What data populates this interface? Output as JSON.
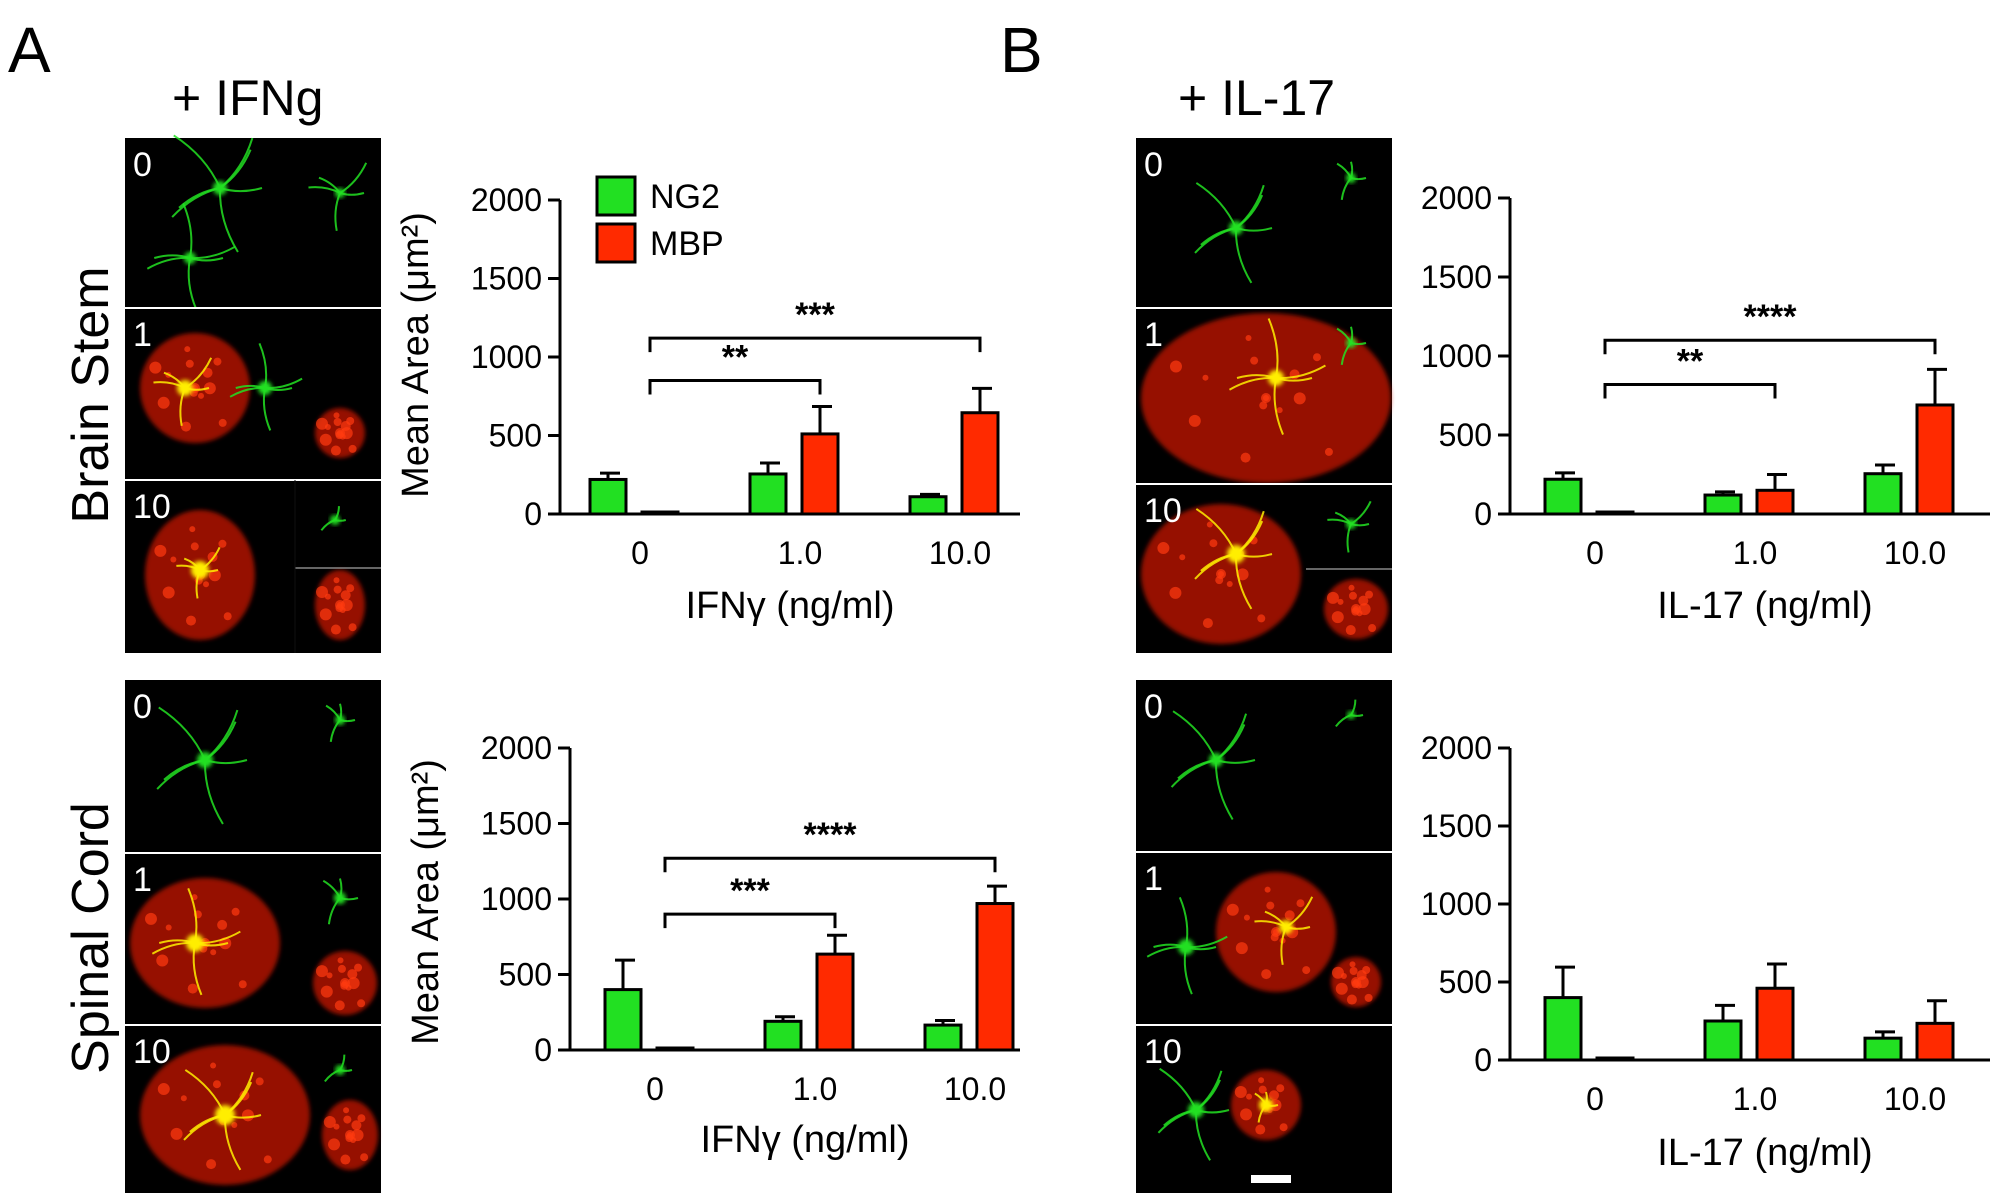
{
  "panel_A": {
    "letter": "A",
    "title": "+ IFNg"
  },
  "panel_B": {
    "letter": "B",
    "title": "+ IL-17"
  },
  "rows": {
    "top": "Brain Stem",
    "bottom": "Spinal Cord"
  },
  "micrograph_labels": [
    "0",
    "1",
    "10"
  ],
  "legend": [
    {
      "label": "NG2",
      "color": "#22e022"
    },
    {
      "label": "MBP",
      "color": "#ff2a00"
    }
  ],
  "colors": {
    "ng2": "#22e022",
    "mbp": "#ff2a00",
    "micrograph_bg": "#000000"
  },
  "chart_data": [
    {
      "id": "A-brainstem",
      "type": "bar",
      "categories": [
        "0",
        "1.0",
        "10.0"
      ],
      "series": [
        {
          "name": "NG2",
          "values": [
            220,
            255,
            110
          ],
          "errors": [
            40,
            70,
            15
          ]
        },
        {
          "name": "MBP",
          "values": [
            0,
            510,
            645
          ],
          "errors": [
            0,
            175,
            155
          ]
        }
      ],
      "ylabel": "Mean Area (μm²)",
      "xlabel": "IFNγ (ng/ml)",
      "ylim": [
        0,
        2000
      ],
      "yticks": [
        "0",
        "500",
        "1000",
        "1500",
        "2000"
      ],
      "legend": "top-left",
      "significance": [
        {
          "from": 0,
          "to": 1,
          "label": "**",
          "level": 850
        },
        {
          "from": 0,
          "to": 2,
          "label": "***",
          "level": 1120
        }
      ]
    },
    {
      "id": "A-spinalcord",
      "type": "bar",
      "categories": [
        "0",
        "1.0",
        "10.0"
      ],
      "series": [
        {
          "name": "NG2",
          "values": [
            400,
            190,
            165
          ],
          "errors": [
            195,
            30,
            30
          ]
        },
        {
          "name": "MBP",
          "values": [
            5,
            635,
            970
          ],
          "errors": [
            0,
            125,
            115
          ]
        }
      ],
      "ylabel": "Mean Area (μm²)",
      "xlabel": "IFNγ (ng/ml)",
      "ylim": [
        0,
        2000
      ],
      "yticks": [
        "0",
        "500",
        "1000",
        "1500",
        "2000"
      ],
      "significance": [
        {
          "from": 0,
          "to": 1,
          "label": "***",
          "level": 900
        },
        {
          "from": 0,
          "to": 2,
          "label": "****",
          "level": 1270
        }
      ]
    },
    {
      "id": "B-brainstem",
      "type": "bar",
      "categories": [
        "0",
        "1.0",
        "10.0"
      ],
      "series": [
        {
          "name": "NG2",
          "values": [
            220,
            120,
            255
          ],
          "errors": [
            40,
            20,
            55
          ]
        },
        {
          "name": "MBP",
          "values": [
            0,
            150,
            690
          ],
          "errors": [
            0,
            100,
            225
          ]
        }
      ],
      "ylabel": "",
      "xlabel": "IL-17 (ng/ml)",
      "ylim": [
        0,
        2000
      ],
      "yticks": [
        "0",
        "500",
        "1000",
        "1500",
        "2000"
      ],
      "significance": [
        {
          "from": 0,
          "to": 1,
          "label": "**",
          "level": 820
        },
        {
          "from": 0,
          "to": 2,
          "label": "****",
          "level": 1100
        }
      ]
    },
    {
      "id": "B-spinalcord",
      "type": "bar",
      "categories": [
        "0",
        "1.0",
        "10.0"
      ],
      "series": [
        {
          "name": "NG2",
          "values": [
            400,
            250,
            140
          ],
          "errors": [
            195,
            100,
            40
          ]
        },
        {
          "name": "MBP",
          "values": [
            5,
            460,
            235
          ],
          "errors": [
            0,
            155,
            145
          ]
        }
      ],
      "ylabel": "",
      "xlabel": "IL-17 (ng/ml)",
      "ylim": [
        0,
        2000
      ],
      "yticks": [
        "0",
        "500",
        "1000",
        "1500",
        "2000"
      ],
      "significance": []
    }
  ]
}
